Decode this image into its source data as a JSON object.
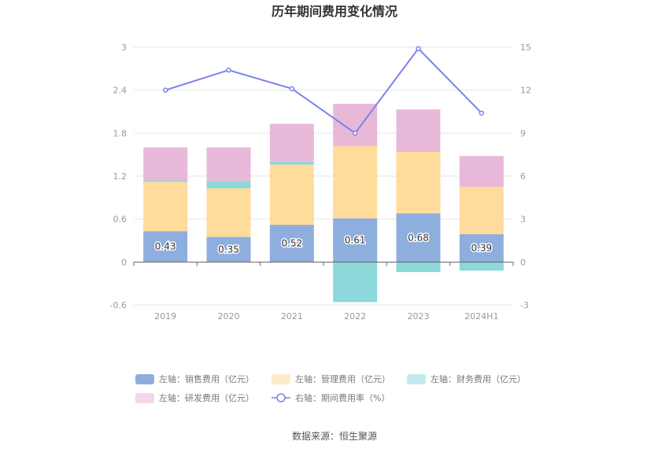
{
  "chart_data": {
    "type": "bar",
    "title": "历年期间费用变化情况",
    "categories": [
      "2019",
      "2020",
      "2021",
      "2022",
      "2023",
      "2024H1"
    ],
    "stacked": true,
    "left_axis": {
      "ticks": [
        "3",
        "2.4",
        "1.8",
        "1.2",
        "0.6",
        "0",
        "-0.6"
      ],
      "ylim": [
        -0.6,
        3
      ]
    },
    "right_axis": {
      "ticks": [
        "15",
        "12",
        "9",
        "6",
        "3",
        "0",
        "-3"
      ],
      "ylim": [
        -3,
        15
      ]
    },
    "series": [
      {
        "name": "左轴：销售费用（亿元）",
        "type": "bar",
        "axis": "left",
        "color": "#8eaedd",
        "values": [
          0.43,
          0.35,
          0.52,
          0.61,
          0.68,
          0.39
        ],
        "data_labels": [
          "0.43",
          "0.35",
          "0.52",
          "0.61",
          "0.68",
          "0.39"
        ]
      },
      {
        "name": "左轴：管理费用（亿元）",
        "type": "bar",
        "axis": "left",
        "color": "#ffdb9c",
        "values": [
          0.69,
          0.68,
          0.84,
          1.01,
          0.86,
          0.66
        ]
      },
      {
        "name": "左轴：财务费用（亿元）",
        "type": "bar",
        "axis": "left",
        "color": "#8cd8da",
        "values": [
          0.02,
          0.1,
          0.04,
          -0.56,
          -0.14,
          -0.12
        ]
      },
      {
        "name": "左轴：研发费用（亿元）",
        "type": "bar",
        "axis": "left",
        "color": "#e8b8d9",
        "values": [
          0.46,
          0.47,
          0.53,
          0.59,
          0.59,
          0.43
        ]
      },
      {
        "name": "右轴：期间费用率（%）",
        "type": "line",
        "axis": "right",
        "color": "#7b83ec",
        "values": [
          12.0,
          13.4,
          12.1,
          9.0,
          14.9,
          10.4
        ]
      }
    ],
    "legend_position": "bottom",
    "grid": true
  },
  "source": "数据来源：恒生聚源"
}
